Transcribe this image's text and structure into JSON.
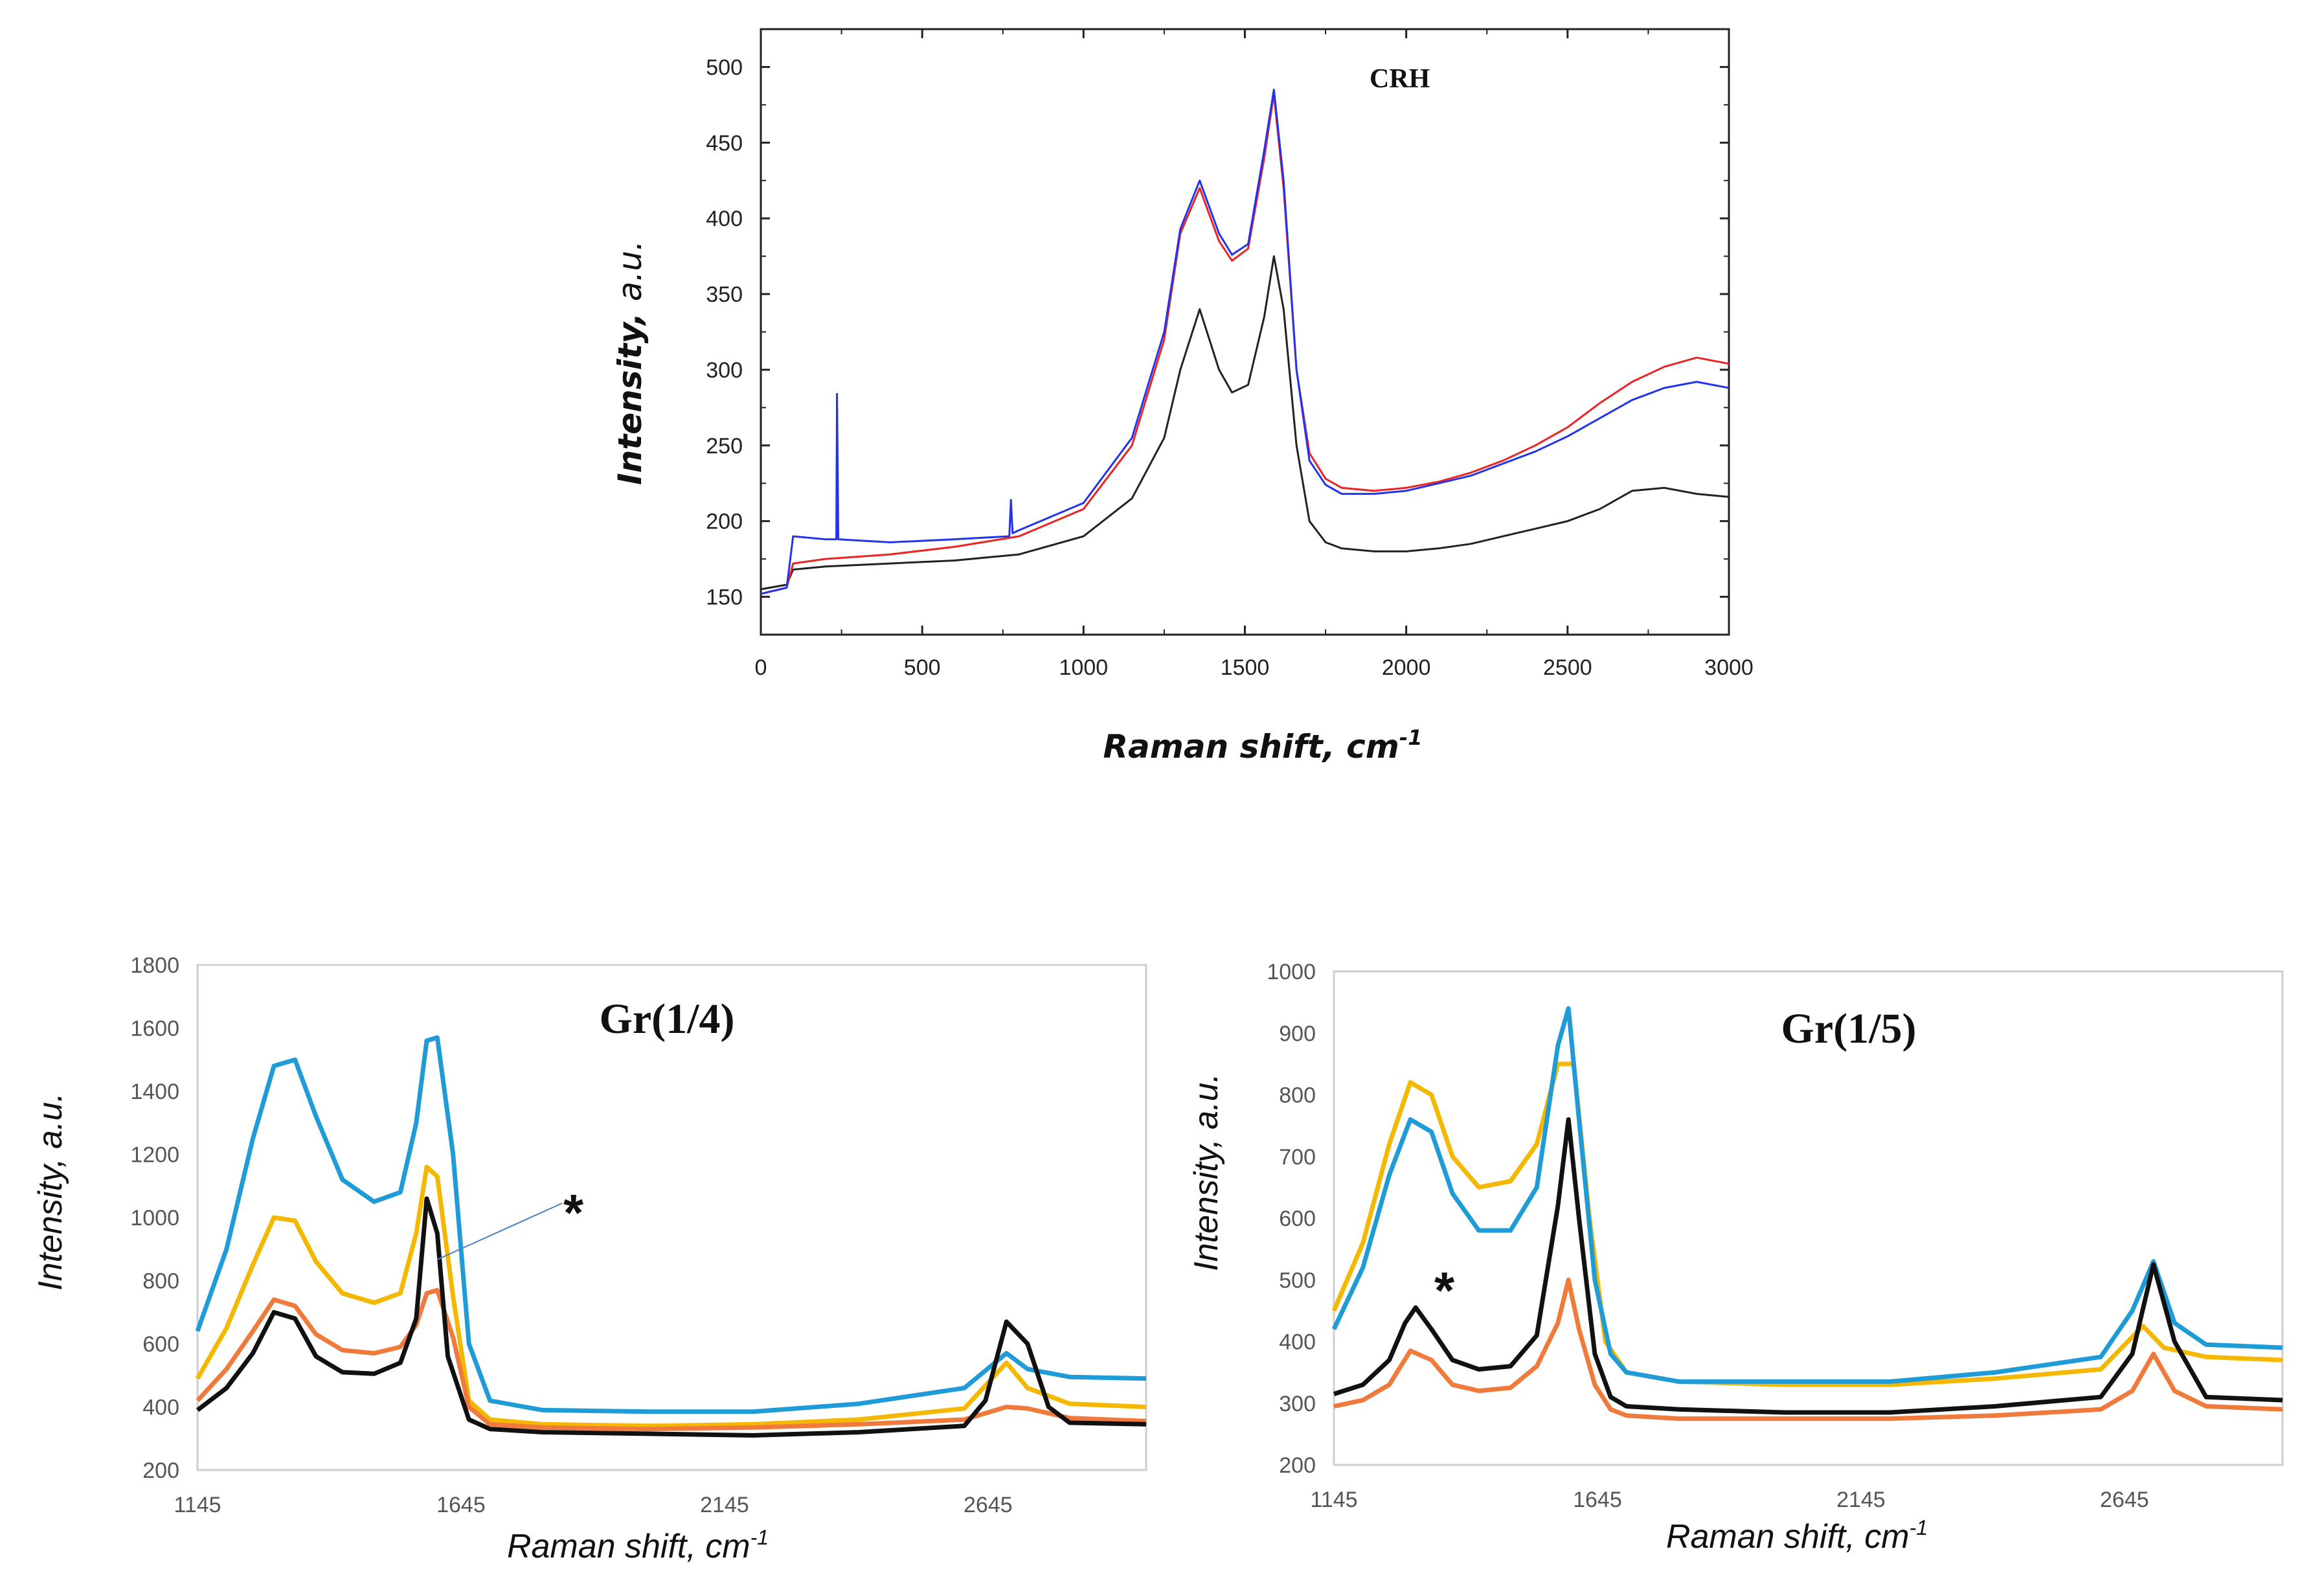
{
  "chart_data": [
    {
      "id": "crh",
      "type": "line",
      "title": "CRH",
      "xlabel": "Raman shift, cm",
      "xlabel_sup": "-1",
      "ylabel_main": "Intensity,",
      "ylabel_unit": "a.u.",
      "xlim": [
        0,
        3000
      ],
      "ylim": [
        125,
        525
      ],
      "xticks": [
        "0",
        "500",
        "1000",
        "1500",
        "2000",
        "2500",
        "3000"
      ],
      "yticks": [
        "150",
        "200",
        "250",
        "300",
        "350",
        "400",
        "450",
        "500"
      ],
      "series": [
        {
          "name": "black",
          "color": "#222222",
          "x": [
            0,
            80,
            100,
            200,
            400,
            600,
            800,
            1000,
            1150,
            1250,
            1300,
            1360,
            1420,
            1460,
            1510,
            1560,
            1590,
            1620,
            1660,
            1700,
            1750,
            1800,
            1900,
            2000,
            2100,
            2200,
            2300,
            2400,
            2500,
            2600,
            2700,
            2800,
            2900,
            3000
          ],
          "y": [
            155,
            158,
            168,
            170,
            172,
            174,
            178,
            190,
            215,
            255,
            300,
            340,
            300,
            285,
            290,
            335,
            375,
            340,
            250,
            200,
            186,
            182,
            180,
            180,
            182,
            185,
            190,
            195,
            200,
            208,
            220,
            222,
            218,
            216
          ]
        },
        {
          "name": "red",
          "color": "#ee2222",
          "x": [
            0,
            80,
            100,
            200,
            400,
            600,
            800,
            1000,
            1150,
            1250,
            1300,
            1360,
            1420,
            1460,
            1510,
            1560,
            1590,
            1620,
            1660,
            1700,
            1750,
            1800,
            1900,
            2000,
            2100,
            2200,
            2300,
            2400,
            2500,
            2600,
            2700,
            2800,
            2900,
            3000
          ],
          "y": [
            152,
            156,
            172,
            175,
            178,
            183,
            190,
            208,
            250,
            320,
            390,
            420,
            385,
            372,
            380,
            440,
            482,
            420,
            300,
            245,
            228,
            222,
            220,
            222,
            226,
            232,
            240,
            250,
            262,
            278,
            292,
            302,
            308,
            304
          ]
        },
        {
          "name": "blue",
          "color": "#2233ee",
          "x": [
            0,
            80,
            100,
            200,
            234,
            236,
            240,
            400,
            600,
            770,
            775,
            780,
            800,
            1000,
            1150,
            1250,
            1300,
            1360,
            1420,
            1460,
            1510,
            1560,
            1590,
            1620,
            1660,
            1700,
            1750,
            1800,
            1900,
            2000,
            2100,
            2200,
            2300,
            2400,
            2500,
            2600,
            2700,
            2800,
            2900,
            3000
          ],
          "y": [
            152,
            156,
            190,
            188,
            188,
            284,
            188,
            186,
            188,
            190,
            214,
            192,
            194,
            212,
            255,
            325,
            393,
            425,
            390,
            376,
            383,
            445,
            485,
            425,
            300,
            240,
            224,
            218,
            218,
            220,
            225,
            230,
            238,
            246,
            256,
            268,
            280,
            288,
            292,
            288
          ]
        }
      ]
    },
    {
      "id": "gr14",
      "type": "line",
      "title": "Gr(1/4)",
      "xlabel": "Raman shift, cm",
      "xlabel_sup": "-1",
      "ylabel_main": "Intensity,",
      "ylabel_unit": "a.u.",
      "xlim": [
        1145,
        2945
      ],
      "ylim": [
        200,
        1800
      ],
      "xticks": [
        1145,
        1645,
        2145,
        2645
      ],
      "xtick_labels": [
        "1145",
        "1645",
        "2145",
        "2645"
      ],
      "yticks": [
        "200",
        "400",
        "600",
        "800",
        "1000",
        "1200",
        "1400",
        "1600",
        "1800"
      ],
      "annotation": "*",
      "series": [
        {
          "name": "blue",
          "color": "#1f9bd7",
          "x": [
            1145,
            1200,
            1250,
            1290,
            1330,
            1370,
            1420,
            1480,
            1530,
            1560,
            1580,
            1600,
            1630,
            1660,
            1700,
            1800,
            2000,
            2200,
            2400,
            2600,
            2680,
            2720,
            2800,
            2945
          ],
          "y": [
            640,
            900,
            1250,
            1480,
            1500,
            1320,
            1120,
            1050,
            1080,
            1300,
            1560,
            1570,
            1200,
            600,
            420,
            390,
            385,
            385,
            410,
            460,
            570,
            520,
            495,
            490
          ]
        },
        {
          "name": "yellow",
          "color": "#f5b800",
          "x": [
            1145,
            1200,
            1250,
            1290,
            1330,
            1370,
            1420,
            1480,
            1530,
            1560,
            1580,
            1600,
            1630,
            1660,
            1700,
            1800,
            2000,
            2200,
            2400,
            2600,
            2680,
            2720,
            2800,
            2945
          ],
          "y": [
            490,
            650,
            850,
            1000,
            990,
            860,
            760,
            730,
            760,
            950,
            1160,
            1130,
            750,
            420,
            360,
            345,
            340,
            345,
            360,
            395,
            540,
            460,
            410,
            400
          ]
        },
        {
          "name": "orange",
          "color": "#f07a3c",
          "x": [
            1145,
            1200,
            1250,
            1290,
            1330,
            1370,
            1420,
            1480,
            1530,
            1560,
            1580,
            1600,
            1630,
            1660,
            1700,
            1800,
            2000,
            2200,
            2400,
            2600,
            2680,
            2720,
            2800,
            2945
          ],
          "y": [
            420,
            520,
            640,
            740,
            720,
            630,
            580,
            570,
            590,
            660,
            760,
            770,
            620,
            400,
            345,
            335,
            330,
            335,
            345,
            360,
            400,
            395,
            365,
            355
          ]
        },
        {
          "name": "black",
          "color": "#111111",
          "x": [
            1145,
            1200,
            1250,
            1290,
            1330,
            1370,
            1420,
            1480,
            1530,
            1560,
            1580,
            1600,
            1620,
            1660,
            1700,
            1800,
            2000,
            2200,
            2400,
            2600,
            2640,
            2680,
            2720,
            2760,
            2800,
            2945
          ],
          "y": [
            390,
            460,
            570,
            700,
            680,
            560,
            510,
            505,
            540,
            680,
            1060,
            950,
            560,
            360,
            330,
            320,
            315,
            310,
            320,
            340,
            420,
            670,
            600,
            400,
            350,
            345
          ]
        }
      ]
    },
    {
      "id": "gr15",
      "type": "line",
      "title": "Gr(1/5)",
      "xlabel": "Raman shift, cm",
      "xlabel_sup": "-1",
      "ylabel_main": "Intensity,",
      "ylabel_unit": "a.u.",
      "xlim": [
        1145,
        2945
      ],
      "ylim": [
        200,
        1000
      ],
      "xticks": [
        1145,
        1645,
        2145,
        2645
      ],
      "xtick_labels": [
        "1145",
        "1645",
        "2145",
        "2645"
      ],
      "yticks": [
        "200",
        "300",
        "400",
        "500",
        "600",
        "700",
        "800",
        "900",
        "1000"
      ],
      "annotation": "*",
      "series": [
        {
          "name": "yellow",
          "color": "#f5b800",
          "x": [
            1145,
            1200,
            1250,
            1290,
            1330,
            1370,
            1420,
            1480,
            1530,
            1570,
            1600,
            1630,
            1660,
            1700,
            1800,
            2000,
            2200,
            2400,
            2600,
            2680,
            2720,
            2800,
            2945
          ],
          "y": [
            450,
            560,
            720,
            820,
            800,
            700,
            650,
            660,
            720,
            850,
            850,
            600,
            400,
            350,
            335,
            330,
            330,
            340,
            355,
            425,
            390,
            375,
            370
          ]
        },
        {
          "name": "blue",
          "color": "#1f9bd7",
          "x": [
            1145,
            1200,
            1250,
            1290,
            1330,
            1370,
            1420,
            1480,
            1530,
            1570,
            1590,
            1610,
            1640,
            1670,
            1700,
            1800,
            2000,
            2200,
            2400,
            2600,
            2660,
            2700,
            2740,
            2800,
            2945
          ],
          "y": [
            420,
            520,
            670,
            760,
            740,
            640,
            580,
            580,
            650,
            880,
            940,
            760,
            500,
            380,
            350,
            335,
            335,
            335,
            350,
            375,
            450,
            530,
            430,
            395,
            390
          ]
        },
        {
          "name": "black",
          "color": "#111111",
          "x": [
            1145,
            1200,
            1250,
            1280,
            1300,
            1330,
            1370,
            1420,
            1480,
            1530,
            1570,
            1590,
            1610,
            1640,
            1670,
            1700,
            1800,
            2000,
            2200,
            2400,
            2600,
            2660,
            2700,
            2740,
            2800,
            2945
          ],
          "y": [
            315,
            330,
            370,
            430,
            455,
            420,
            370,
            355,
            360,
            410,
            620,
            760,
            600,
            380,
            310,
            295,
            290,
            285,
            285,
            295,
            310,
            380,
            525,
            400,
            310,
            305
          ]
        },
        {
          "name": "orange",
          "color": "#f07a3c",
          "x": [
            1145,
            1200,
            1250,
            1290,
            1330,
            1370,
            1420,
            1480,
            1530,
            1570,
            1590,
            1610,
            1640,
            1670,
            1700,
            1800,
            2000,
            2200,
            2400,
            2600,
            2660,
            2700,
            2740,
            2800,
            2945
          ],
          "y": [
            295,
            305,
            330,
            385,
            370,
            330,
            320,
            325,
            360,
            430,
            500,
            420,
            330,
            290,
            280,
            275,
            275,
            275,
            280,
            290,
            320,
            380,
            320,
            295,
            290
          ]
        }
      ]
    }
  ]
}
